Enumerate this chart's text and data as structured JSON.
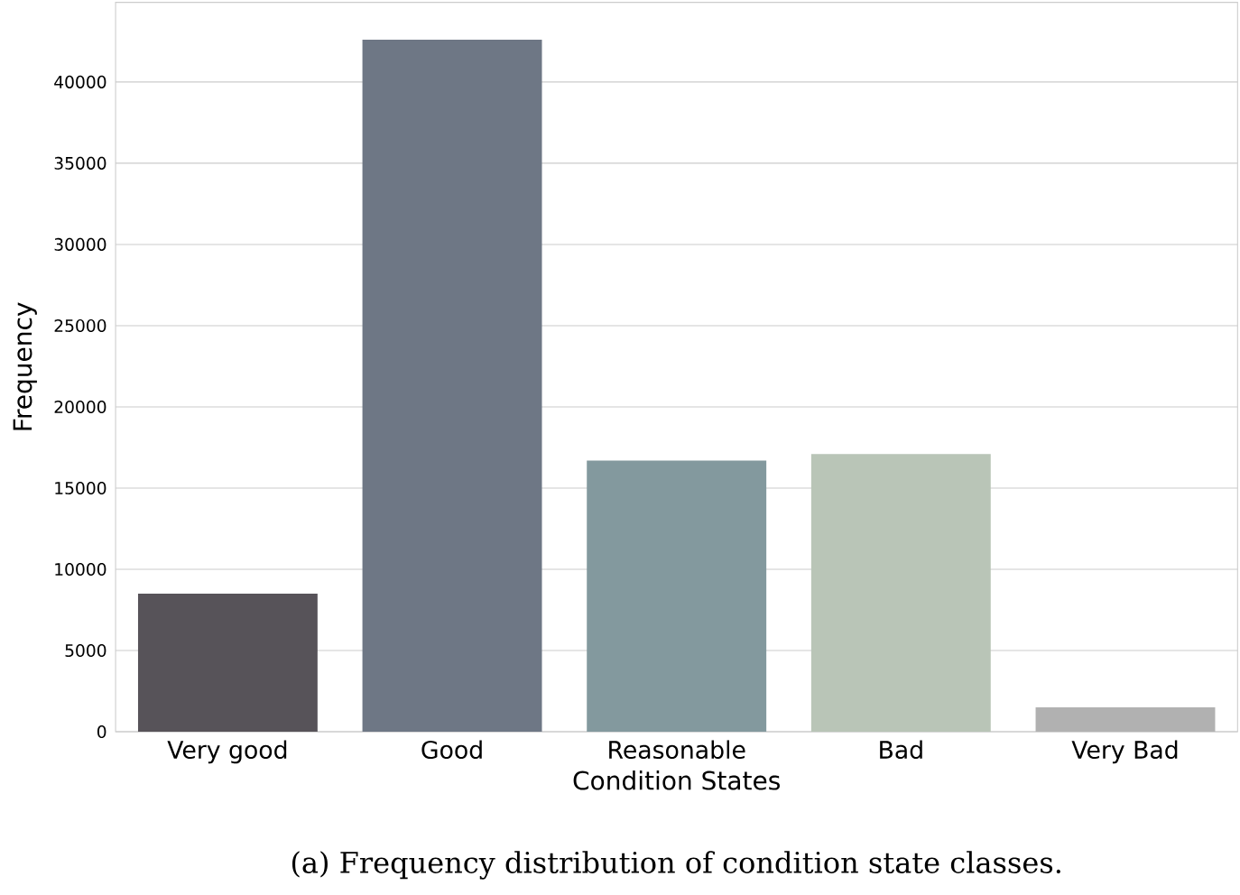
{
  "chart_data": {
    "type": "bar",
    "xlabel": "Condition States",
    "ylabel": "Frequency",
    "categories": [
      "Very good",
      "Good",
      "Reasonable",
      "Bad",
      "Very Bad"
    ],
    "values": [
      8500,
      42600,
      16700,
      17100,
      1500
    ],
    "colors": [
      "#575359",
      "#6e7785",
      "#83999e",
      "#b9c5b7",
      "#b1b1b1"
    ],
    "ylim": [
      0,
      44900
    ],
    "yticks": [
      0,
      5000,
      10000,
      15000,
      20000,
      25000,
      30000,
      35000,
      40000
    ],
    "grid": "y",
    "annotations": [
      "(a) Frequency distribution of condition state classes."
    ]
  }
}
